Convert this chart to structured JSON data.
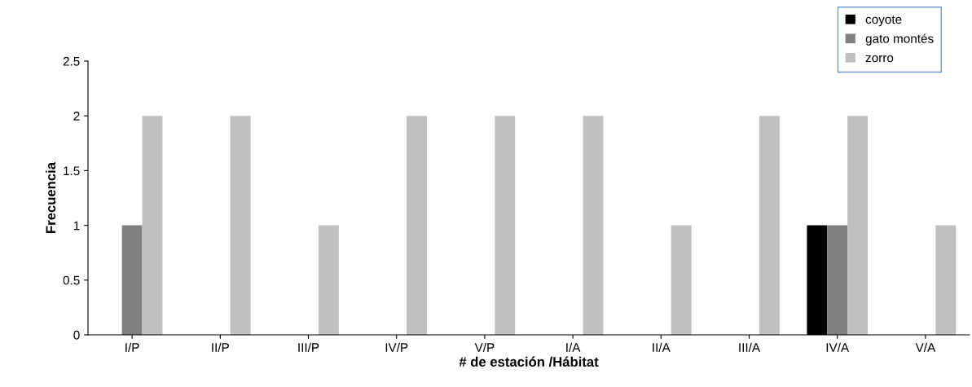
{
  "chart_data": {
    "type": "bar",
    "xlabel": "# de estación /Hábitat",
    "ylabel": "Frecuencia",
    "categories": [
      "I/P",
      "II/P",
      "III/P",
      "IV/P",
      "V/P",
      "I/A",
      "II/A",
      "III/A",
      "IV/A",
      "V/A"
    ],
    "series": [
      {
        "name": "coyote",
        "color": "#000000",
        "values": [
          0,
          0,
          0,
          0,
          0,
          0,
          0,
          0,
          1,
          0
        ]
      },
      {
        "name": "gato montés",
        "color": "#808080",
        "values": [
          1,
          0,
          0,
          0,
          0,
          0,
          0,
          0,
          1,
          0
        ]
      },
      {
        "name": "zorro",
        "color": "#c0c0c0",
        "values": [
          2,
          2,
          1,
          2,
          2,
          2,
          1,
          2,
          2,
          1
        ]
      }
    ],
    "ylim": [
      0,
      2.5
    ],
    "yticks": [
      0,
      0.5,
      1,
      1.5,
      2,
      2.5
    ],
    "grid": false,
    "legend": "top right"
  }
}
